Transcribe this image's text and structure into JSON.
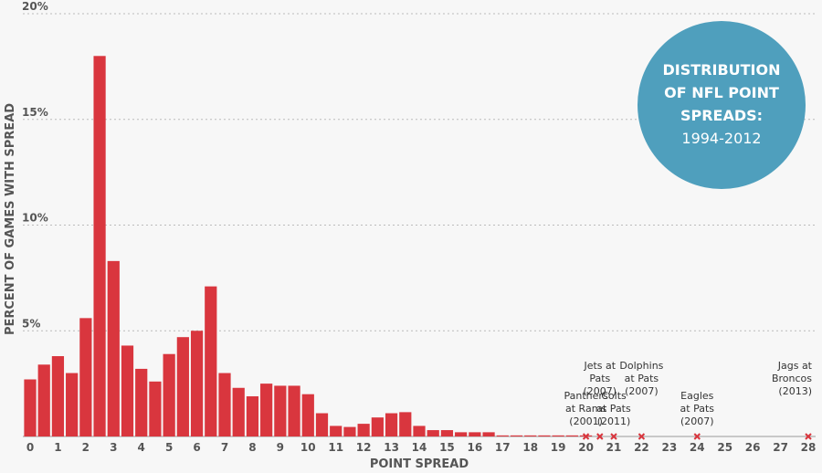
{
  "chart_data": {
    "type": "bar",
    "title": [
      "DISTRIBUTION",
      "OF NFL POINT",
      "SPREADS:"
    ],
    "subtitle": "1994-2012",
    "xlabel": "POINT SPREAD",
    "ylabel": "PERCENT OF GAMES WITH SPREAD",
    "xlim": [
      0,
      28
    ],
    "ylim": [
      0,
      20
    ],
    "x_ticks": [
      0,
      1,
      2,
      3,
      4,
      5,
      6,
      7,
      8,
      9,
      10,
      11,
      12,
      13,
      14,
      15,
      16,
      17,
      18,
      19,
      20,
      21,
      22,
      23,
      24,
      25,
      26,
      27,
      28
    ],
    "y_ticks": [
      {
        "value": 5,
        "label": "5%"
      },
      {
        "value": 10,
        "label": "10%"
      },
      {
        "value": 15,
        "label": "15%"
      },
      {
        "value": 20,
        "label": "20%"
      }
    ],
    "grid": true,
    "bar_color": "#d9363e",
    "x": [
      0,
      0.5,
      1,
      1.5,
      2,
      2.5,
      3,
      3.5,
      4,
      4.5,
      5,
      5.5,
      6,
      6.5,
      7,
      7.5,
      8,
      8.5,
      9,
      9.5,
      10,
      10.5,
      11,
      11.5,
      12,
      12.5,
      13,
      13.5,
      14,
      14.5,
      15,
      15.5,
      16,
      16.5,
      17,
      17.5,
      18,
      18.5,
      19,
      19.5,
      20
    ],
    "values": [
      2.7,
      3.4,
      3.8,
      3.0,
      5.6,
      18.0,
      8.3,
      4.3,
      3.2,
      2.6,
      3.9,
      4.7,
      5.0,
      7.1,
      3.0,
      2.3,
      1.9,
      2.5,
      2.4,
      2.4,
      2.0,
      1.1,
      0.5,
      0.45,
      0.6,
      0.9,
      1.1,
      1.15,
      0.5,
      0.3,
      0.3,
      0.2,
      0.2,
      0.2,
      0.05,
      0.05,
      0.05,
      0.05,
      0.05,
      0.05,
      0.05
    ],
    "annotations": [
      {
        "x": 20,
        "lines": [
          "Panthers",
          "at Rams",
          "(2001)"
        ]
      },
      {
        "x": 20.5,
        "lines": [
          "Jets at",
          "Pats",
          "(2007)"
        ]
      },
      {
        "x": 21,
        "lines": [
          "Colts",
          "at Pats",
          "(2011)"
        ]
      },
      {
        "x": 22,
        "lines": [
          "Dolphins",
          "at Pats",
          "(2007)"
        ]
      },
      {
        "x": 24,
        "lines": [
          "Eagles",
          "at Pats",
          "(2007)"
        ]
      },
      {
        "x": 28,
        "lines": [
          "Jags at",
          "Broncos",
          "(2013)"
        ]
      }
    ],
    "colors": {
      "circle": "#4f9fbd",
      "marker": "#d9363e",
      "grid": "#bbbbbb"
    }
  }
}
